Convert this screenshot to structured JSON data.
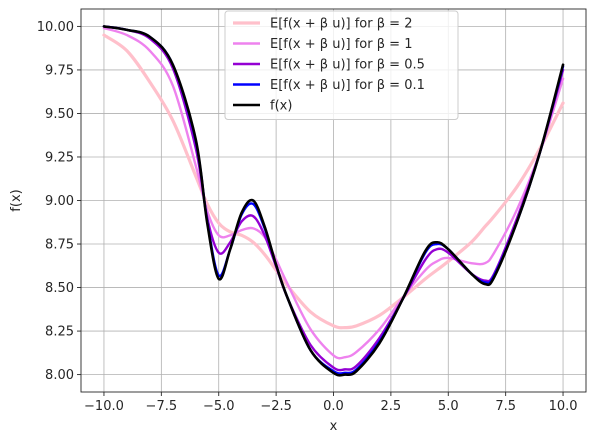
{
  "chart_data": {
    "type": "line",
    "title": "",
    "xlabel": "x",
    "ylabel": "f(x)",
    "xlim": [
      -11.0,
      11.0
    ],
    "ylim": [
      7.9,
      10.1
    ],
    "grid": true,
    "legend_position": "top-center",
    "x_ticks": [
      -10,
      -7.5,
      -5,
      -2.5,
      0,
      2.5,
      5,
      7.5,
      10
    ],
    "x_tick_labels": [
      "−10.0",
      "−7.5",
      "−5.0",
      "−2.5",
      "0.0",
      "2.5",
      "5.0",
      "7.5",
      "10.0"
    ],
    "y_ticks": [
      8.0,
      8.25,
      8.5,
      8.75,
      9.0,
      9.25,
      9.5,
      9.75,
      10.0
    ],
    "y_tick_labels": [
      "8.00",
      "8.25",
      "8.50",
      "8.75",
      "9.00",
      "9.25",
      "9.50",
      "9.75",
      "10.00"
    ],
    "x": [
      -10,
      -9,
      -8,
      -7,
      -6,
      -5.5,
      -5,
      -4.5,
      -4,
      -3.5,
      -3,
      -2.5,
      -2,
      -1,
      0,
      0.5,
      1,
      2,
      3,
      4,
      4.5,
      5,
      6,
      6.6,
      7,
      8,
      9,
      10
    ],
    "series": [
      {
        "name": "E[f(x + β u)] for β = 2",
        "color": "#ffc0cb",
        "width": 3.2,
        "values": [
          9.95,
          9.86,
          9.68,
          9.46,
          9.14,
          8.98,
          8.87,
          8.82,
          8.8,
          8.76,
          8.69,
          8.6,
          8.51,
          8.36,
          8.28,
          8.27,
          8.28,
          8.34,
          8.44,
          8.55,
          8.6,
          8.65,
          8.76,
          8.85,
          8.91,
          9.08,
          9.3,
          9.56
        ]
      },
      {
        "name": "E[f(x + β u)] for β = 1",
        "color": "#ee82ee",
        "width": 2.4,
        "values": [
          9.99,
          9.95,
          9.86,
          9.66,
          9.2,
          8.94,
          8.8,
          8.8,
          8.83,
          8.84,
          8.79,
          8.66,
          8.52,
          8.26,
          8.11,
          8.1,
          8.13,
          8.26,
          8.44,
          8.6,
          8.65,
          8.67,
          8.64,
          8.64,
          8.7,
          8.95,
          9.28,
          9.7
        ]
      },
      {
        "name": "E[f(x + β u)] for β = 0.5",
        "color": "#9400d3",
        "width": 2.4,
        "values": [
          10.0,
          9.98,
          9.93,
          9.76,
          9.3,
          8.9,
          8.7,
          8.76,
          8.88,
          8.91,
          8.8,
          8.62,
          8.44,
          8.17,
          8.04,
          8.03,
          8.05,
          8.21,
          8.43,
          8.66,
          8.72,
          8.7,
          8.58,
          8.54,
          8.58,
          8.9,
          9.28,
          9.75
        ]
      },
      {
        "name": "E[f(x + β u)] for β = 0.1",
        "color": "#0000ff",
        "width": 2.4,
        "values": [
          10.0,
          9.98,
          9.94,
          9.78,
          9.34,
          8.88,
          8.57,
          8.72,
          8.92,
          8.98,
          8.84,
          8.63,
          8.44,
          8.14,
          8.02,
          8.01,
          8.03,
          8.19,
          8.43,
          8.7,
          8.75,
          8.72,
          8.58,
          8.53,
          8.57,
          8.88,
          9.28,
          9.77
        ]
      },
      {
        "name": "f(x)",
        "color": "#000000",
        "width": 2.6,
        "values": [
          10.0,
          9.98,
          9.94,
          9.78,
          9.35,
          8.87,
          8.55,
          8.72,
          8.93,
          9.0,
          8.85,
          8.63,
          8.44,
          8.14,
          8.01,
          8.0,
          8.02,
          8.18,
          8.43,
          8.71,
          8.76,
          8.72,
          8.58,
          8.52,
          8.56,
          8.88,
          9.28,
          9.78
        ]
      }
    ]
  }
}
